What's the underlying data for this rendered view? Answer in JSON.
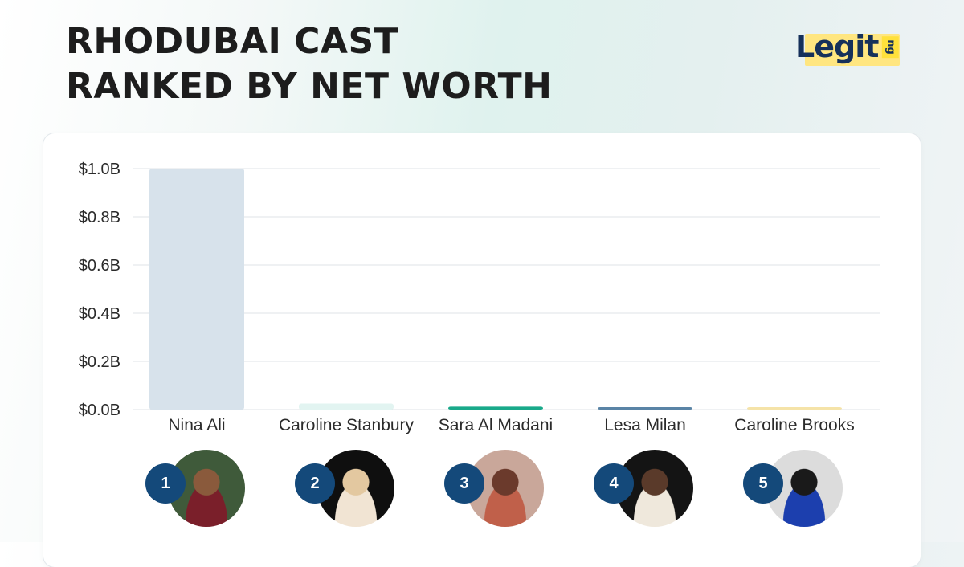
{
  "header": {
    "title_line1": "RHODUBAI CAST",
    "title_line2": "RANKED BY NET WORTH"
  },
  "logo": {
    "word": "Legit",
    "tld": "ng",
    "word_color": "#15305a",
    "tld_bg": "#ffe13b"
  },
  "chart_data": {
    "type": "bar",
    "categories": [
      "Nina Ali",
      "Caroline Stanbury",
      "Sara Al Madani",
      "Lesa Milan",
      "Caroline Brooks"
    ],
    "values": [
      1.0,
      0.025,
      0.012,
      0.006,
      0.002
    ],
    "value_unit": "B",
    "bar_colors": [
      "#d7e2eb",
      "#e2f4f1",
      "#19a98a",
      "#5a84a6",
      "#f5e3a8"
    ],
    "yticks": [
      "$0.0B",
      "$0.2B",
      "$0.4B",
      "$0.6B",
      "$0.8B",
      "$1.0B"
    ],
    "ylim": [
      0,
      1.0
    ],
    "grid": true,
    "title": "",
    "xlabel": "",
    "ylabel": ""
  },
  "ranks": [
    "1",
    "2",
    "3",
    "4",
    "5"
  ],
  "rank_color": "#14497a"
}
